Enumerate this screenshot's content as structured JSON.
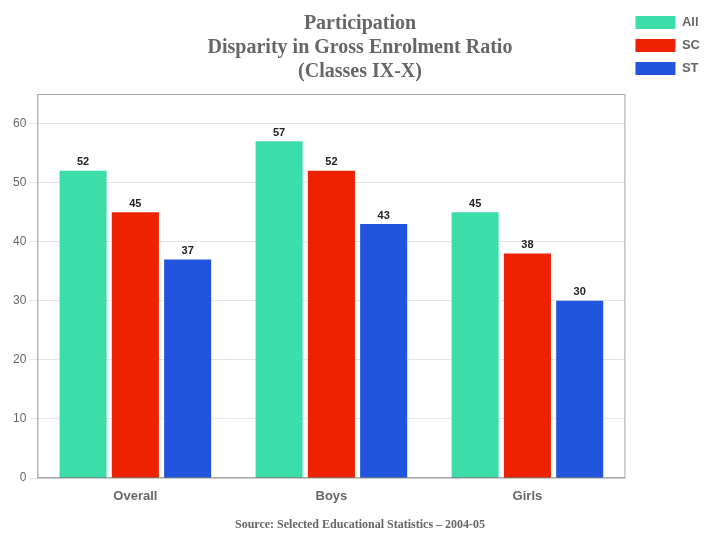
{
  "chart_data": {
    "type": "bar",
    "title": [
      "Participation",
      "Disparity in Gross Enrolment Ratio",
      "(Classes IX-X)"
    ],
    "annotations": [
      "Source: Selected Educational Statistics – 2004-05"
    ],
    "categories": [
      "Overall",
      "Boys",
      "Girls"
    ],
    "series": [
      {
        "name": "All",
        "color": "#3dddaa",
        "values": [
          52,
          57,
          45
        ]
      },
      {
        "name": "SC",
        "color": "#ee2200",
        "values": [
          45,
          52,
          38
        ]
      },
      {
        "name": "ST",
        "color": "#2255dd",
        "values": [
          37,
          43,
          30
        ]
      }
    ],
    "ylim": [
      0,
      65
    ],
    "yticks": [
      0,
      10,
      20,
      30,
      40,
      50,
      60
    ],
    "grid": true,
    "legend": "right",
    "data_labels": true
  }
}
